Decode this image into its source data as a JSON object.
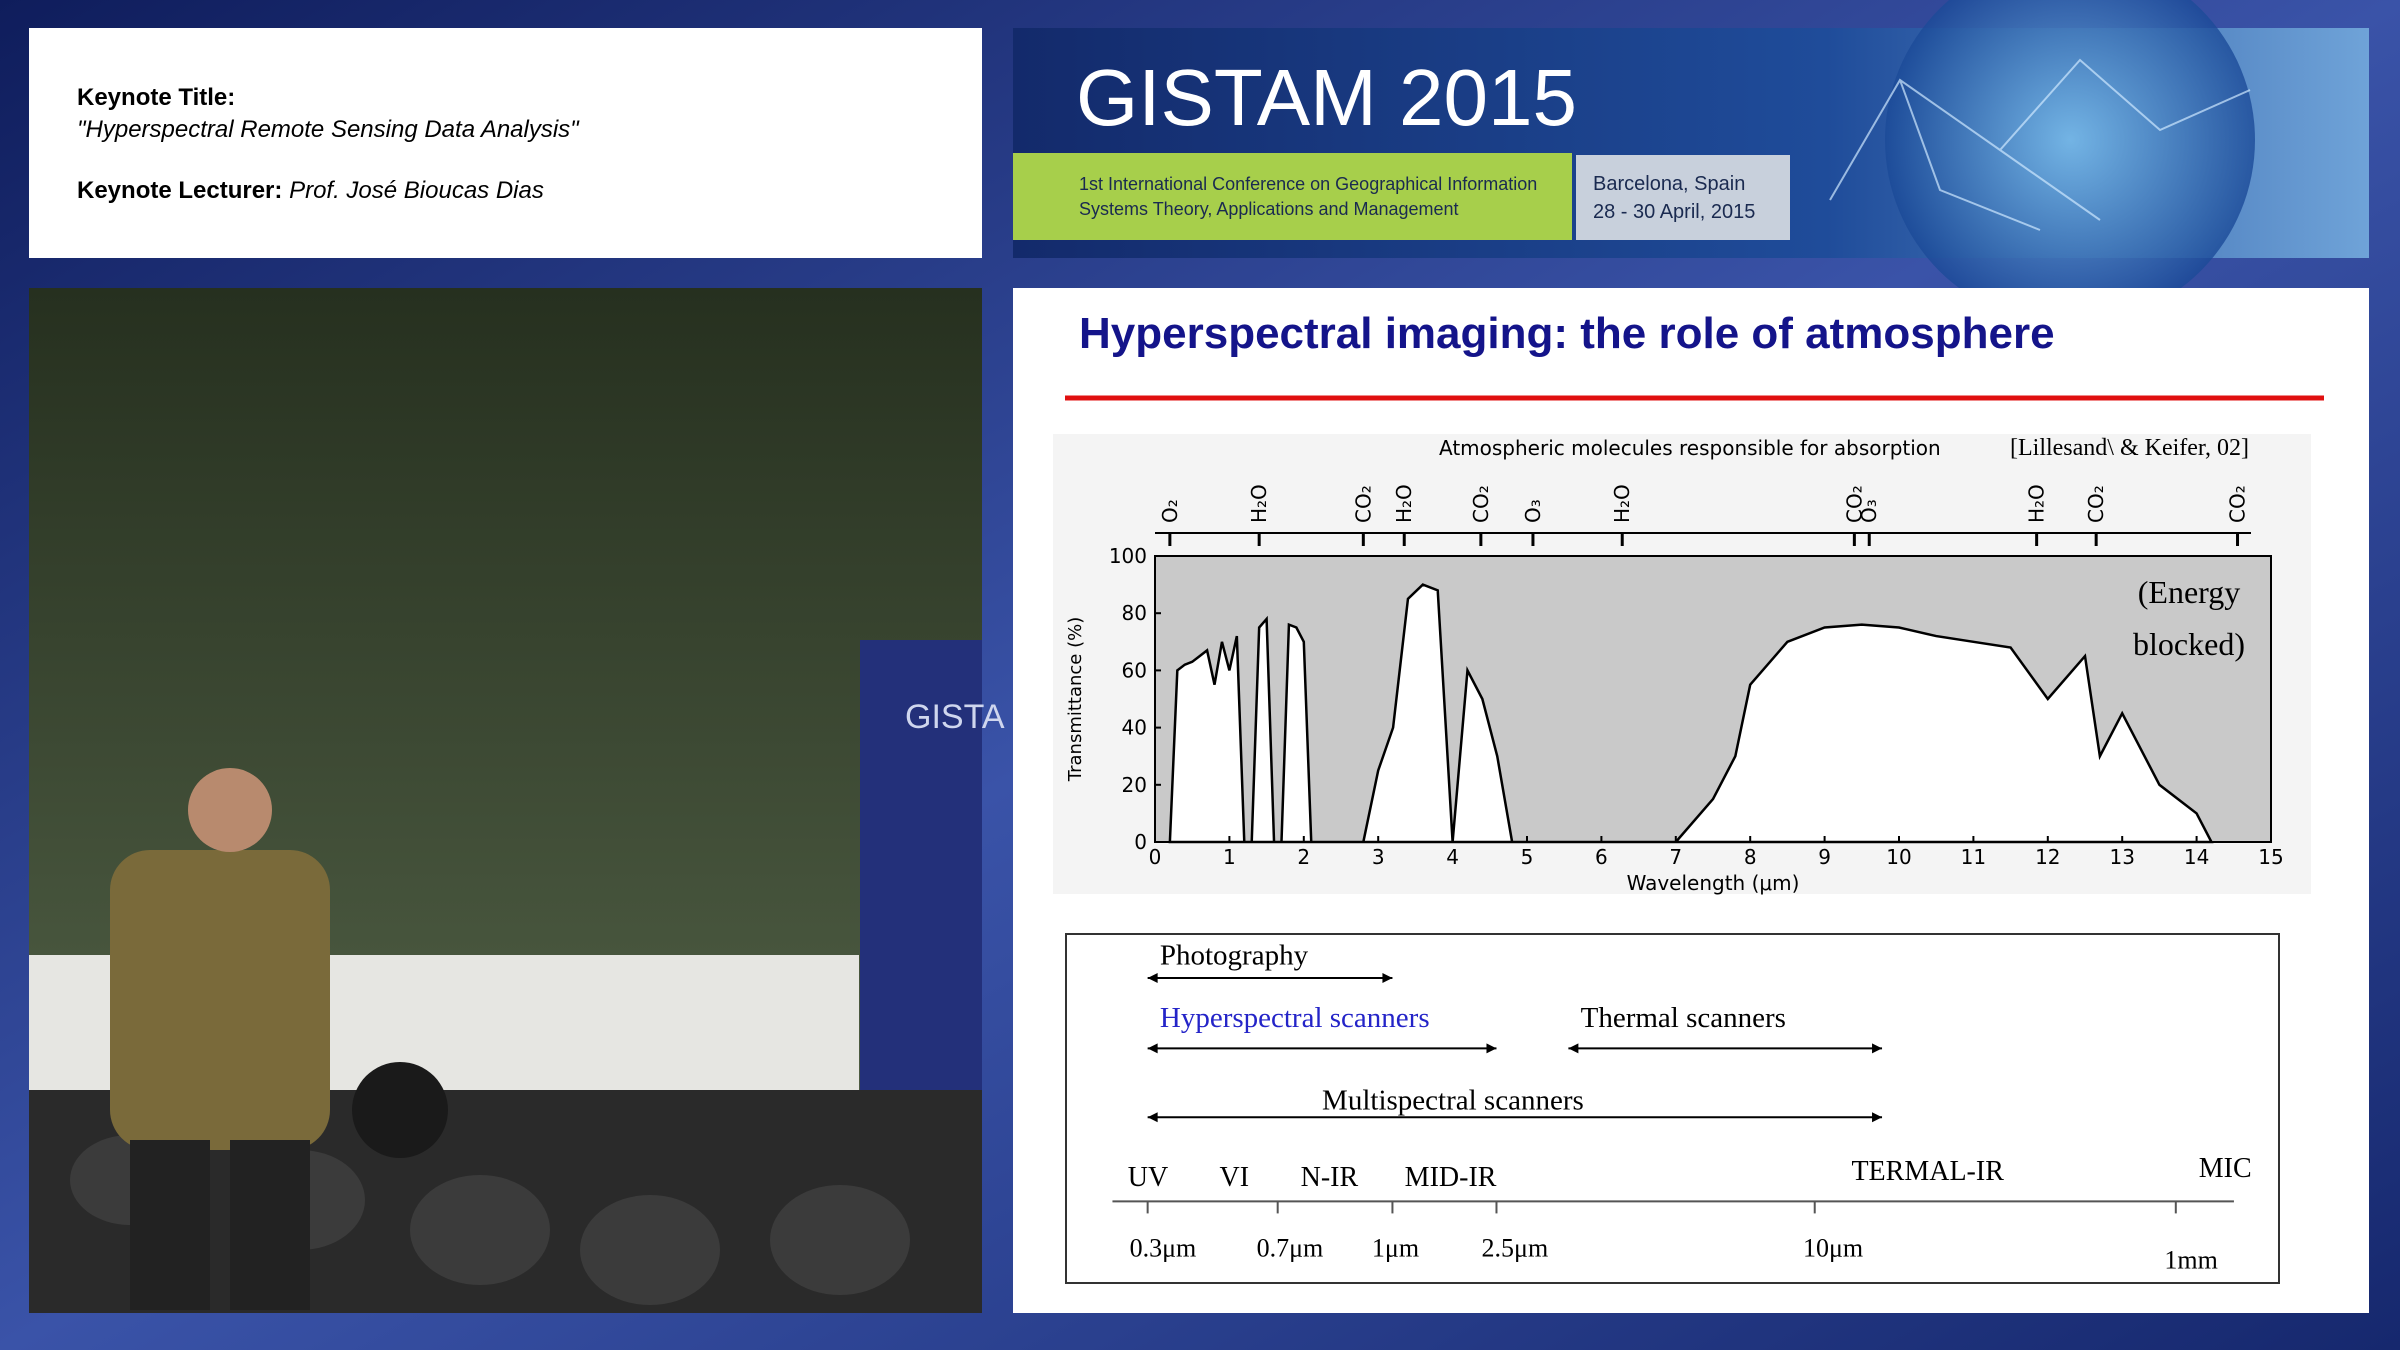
{
  "header": {
    "keynote_title_label": "Keynote Title:",
    "keynote_title": "\"Hyperspectral Remote Sensing Data Analysis\"",
    "keynote_lecturer_label": "Keynote Lecturer:",
    "keynote_lecturer": "Prof. José Bioucas Dias"
  },
  "banner": {
    "title": "GISTAM 2015",
    "conference_line1": "1st International Conference on Geographical Information",
    "conference_line2": "Systems Theory, Applications and Management",
    "location": "Barcelona, Spain",
    "dates": "28 - 30 April, 2015"
  },
  "video": {
    "rollup_text": "GISTA"
  },
  "slide": {
    "title": "Hyperspectral imaging: the role of atmosphere",
    "spectrum": {
      "ranges": [
        "Photography",
        "Hyperspectral scanners",
        "Thermal scanners",
        "Multispectral scanners"
      ],
      "bands": [
        "UV",
        "VI",
        "N-IR",
        "MID-IR",
        "TERMAL-IR",
        "MIC"
      ],
      "scale": [
        "0.3μm",
        "0.7μm",
        "1μm",
        "2.5μm",
        "10μm",
        "1mm"
      ]
    }
  },
  "chart_data": {
    "type": "area",
    "header": "Atmospheric molecules responsible for absorption",
    "citation": "[Lillesand\\ & Keifer, 02]",
    "annotation": [
      "(Energy",
      "blocked)"
    ],
    "xlabel": "Wavelength (μm)",
    "ylabel": "Transmittance (%)",
    "xlim": [
      0,
      15
    ],
    "ylim": [
      0,
      100
    ],
    "xticks": [
      0,
      1,
      2,
      3,
      4,
      5,
      6,
      7,
      8,
      9,
      10,
      11,
      12,
      13,
      14,
      15
    ],
    "yticks": [
      0,
      20,
      40,
      60,
      80,
      100
    ],
    "absorbers": [
      {
        "label": "O₂",
        "x": 0.2
      },
      {
        "label": "H₂O",
        "x": 1.4
      },
      {
        "label": "CO₂",
        "x": 2.8
      },
      {
        "label": "H₂O",
        "x": 3.35
      },
      {
        "label": "CO₂",
        "x": 4.38
      },
      {
        "label": "O₃",
        "x": 5.08
      },
      {
        "label": "H₂O",
        "x": 6.28
      },
      {
        "label": "CO₂",
        "x": 9.4
      },
      {
        "label": "O₃",
        "x": 9.6
      },
      {
        "label": "H₂O",
        "x": 11.85
      },
      {
        "label": "CO₂",
        "x": 12.65
      },
      {
        "label": "CO₂",
        "x": 14.55
      }
    ],
    "series": [
      {
        "name": "Transmittance",
        "color": "#000000",
        "x": [
          0.2,
          0.3,
          0.4,
          0.5,
          0.6,
          0.7,
          0.8,
          0.9,
          1.0,
          1.1,
          1.2,
          1.3,
          1.4,
          1.5,
          1.6,
          1.7,
          1.8,
          1.9,
          2.0,
          2.1,
          2.2,
          2.4,
          2.6,
          2.8,
          3.0,
          3.2,
          3.4,
          3.6,
          3.8,
          4.0,
          4.2,
          4.4,
          4.6,
          4.8,
          5.0,
          5.2,
          5.5,
          6.0,
          6.5,
          7.0,
          7.5,
          7.8,
          8.0,
          8.5,
          9.0,
          9.5,
          10.0,
          10.5,
          11.0,
          11.5,
          12.0,
          12.5,
          12.7,
          13.0,
          13.5,
          14.0,
          14.2
        ],
        "values": [
          0,
          60,
          62,
          63,
          65,
          67,
          55,
          70,
          60,
          72,
          0,
          0,
          75,
          78,
          0,
          0,
          76,
          75,
          70,
          0,
          0,
          0,
          0,
          0,
          25,
          40,
          85,
          90,
          88,
          0,
          60,
          50,
          30,
          0,
          0,
          0,
          0,
          0,
          0,
          0,
          15,
          30,
          55,
          70,
          75,
          76,
          75,
          72,
          70,
          68,
          50,
          65,
          30,
          45,
          20,
          10,
          0
        ]
      }
    ]
  }
}
